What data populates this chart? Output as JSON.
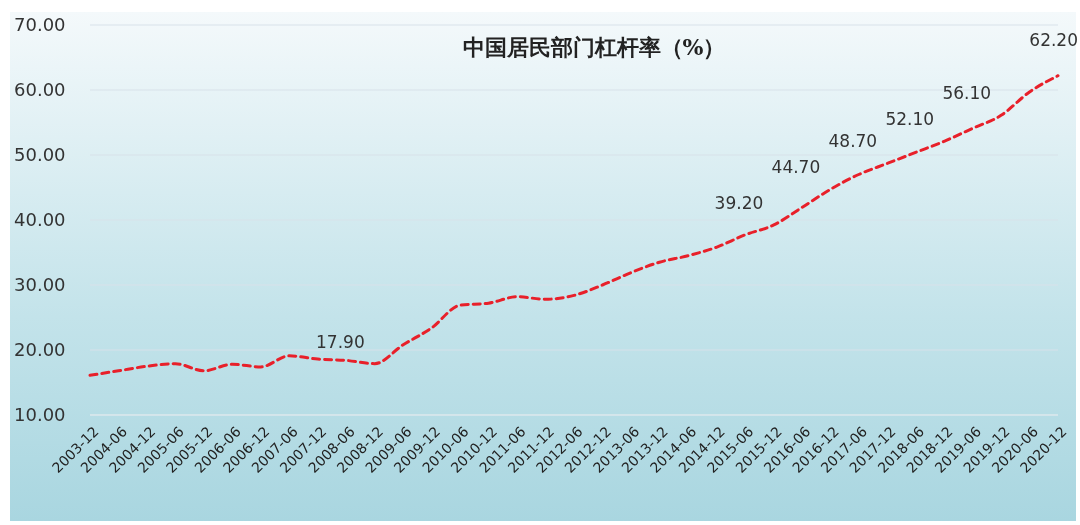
{
  "chart_data": {
    "type": "line",
    "title": "中国居民部门杠杆率（%）",
    "categories": [
      "2003-12",
      "2004-06",
      "2004-12",
      "2005-06",
      "2005-12",
      "2006-06",
      "2006-12",
      "2007-06",
      "2007-12",
      "2008-06",
      "2008-12",
      "2009-06",
      "2009-12",
      "2010-06",
      "2010-12",
      "2011-06",
      "2011-12",
      "2012-06",
      "2012-12",
      "2013-06",
      "2013-12",
      "2014-06",
      "2014-12",
      "2015-06",
      "2015-12",
      "2016-06",
      "2016-12",
      "2017-06",
      "2017-12",
      "2018-06",
      "2018-12",
      "2019-06",
      "2019-12",
      "2020-06",
      "2020-12"
    ],
    "series": [
      {
        "color": "#e8202a",
        "values": [
          16.1,
          16.8,
          17.5,
          17.9,
          16.8,
          17.8,
          17.4,
          19.1,
          18.6,
          18.4,
          17.9,
          20.8,
          23.4,
          26.9,
          27.2,
          28.2,
          27.8,
          28.4,
          30.0,
          31.9,
          33.5,
          34.5,
          35.8,
          37.7,
          39.2,
          41.9,
          44.7,
          47.0,
          48.7,
          50.4,
          52.1,
          54.1,
          56.1,
          59.7,
          62.2
        ],
        "value_labels": [
          null,
          null,
          null,
          null,
          null,
          null,
          null,
          null,
          null,
          null,
          "17.90",
          null,
          null,
          null,
          null,
          null,
          null,
          null,
          null,
          null,
          null,
          null,
          null,
          null,
          "39.20",
          null,
          "44.70",
          null,
          "48.70",
          null,
          "52.10",
          null,
          "56.10",
          null,
          "62.20"
        ]
      }
    ],
    "ylim": [
      10,
      70
    ],
    "yticks": [
      {
        "value": 10,
        "label": "10.00"
      },
      {
        "value": 20,
        "label": "20.00"
      },
      {
        "value": 30,
        "label": "30.00"
      },
      {
        "value": 40,
        "label": "40.00"
      },
      {
        "value": 50,
        "label": "50.00"
      },
      {
        "value": 60,
        "label": "60.00"
      },
      {
        "value": 70,
        "label": "70.00"
      }
    ],
    "grid": "y",
    "line_style": "dashed",
    "marker": "none"
  }
}
